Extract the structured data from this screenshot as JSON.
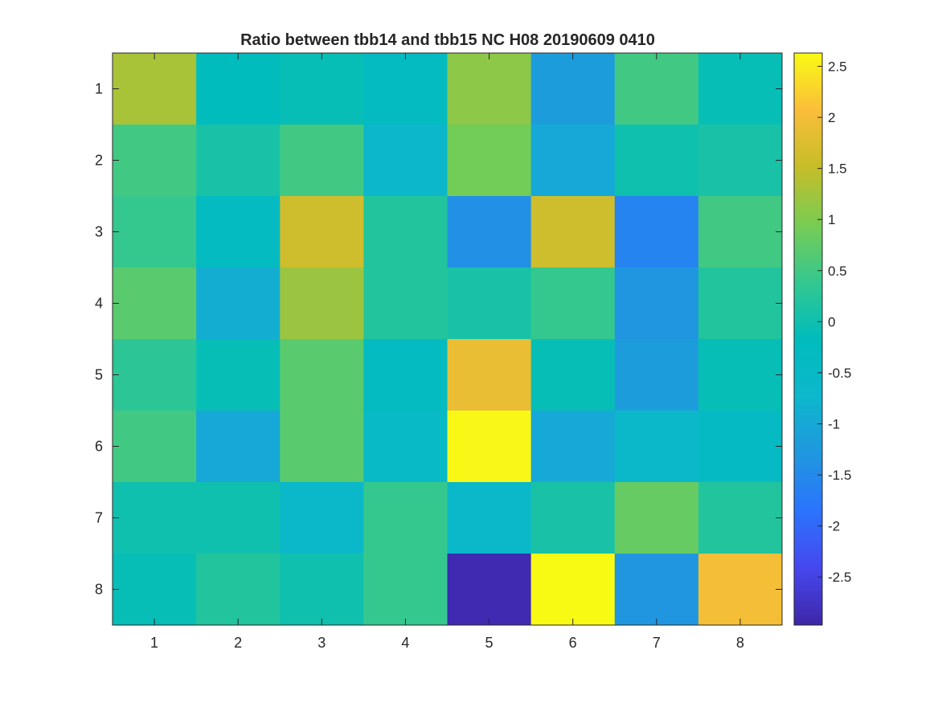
{
  "chart_data": {
    "type": "heatmap",
    "title": "Ratio between tbb14 and tbb15 NC H08 20190609 0410",
    "x_ticks": [
      "1",
      "2",
      "3",
      "4",
      "5",
      "6",
      "7",
      "8"
    ],
    "y_ticks": [
      "1",
      "2",
      "3",
      "4",
      "5",
      "6",
      "7",
      "8"
    ],
    "values": [
      [
        1.3,
        -0.2,
        -0.1,
        -0.3,
        1.1,
        -1.2,
        0.5,
        -0.1
      ],
      [
        0.5,
        0.1,
        0.5,
        -0.7,
        0.9,
        -1.0,
        0.0,
        0.1
      ],
      [
        0.4,
        -0.3,
        1.6,
        0.2,
        -1.4,
        1.6,
        -1.6,
        0.5
      ],
      [
        0.7,
        -0.9,
        1.2,
        0.2,
        0.1,
        0.4,
        -1.3,
        0.2
      ],
      [
        0.3,
        -0.1,
        0.7,
        -0.3,
        1.9,
        -0.1,
        -1.2,
        -0.1
      ],
      [
        0.5,
        -1.0,
        0.7,
        -0.5,
        2.6,
        -1.0,
        -0.6,
        -0.4
      ],
      [
        0.0,
        0.0,
        -0.6,
        0.4,
        -0.6,
        0.1,
        0.8,
        0.2
      ],
      [
        -0.1,
        0.2,
        0.0,
        0.4,
        -2.9,
        2.7,
        -1.3,
        2.0
      ]
    ],
    "colorbar": {
      "ticks": [
        "2.5",
        "2",
        "1.5",
        "1",
        "0.5",
        "0",
        "-0.5",
        "-1",
        "-1.5",
        "-2",
        "-2.5"
      ],
      "tick_values": [
        2.5,
        2,
        1.5,
        1,
        0.5,
        0,
        -0.5,
        -1,
        -1.5,
        -2,
        -2.5
      ],
      "clim": [
        -2.97,
        2.63
      ],
      "colormap": "parula"
    },
    "xlabel": "",
    "ylabel": ""
  }
}
